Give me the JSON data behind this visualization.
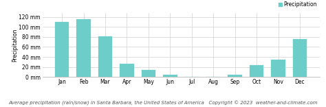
{
  "months": [
    "Jan",
    "Feb",
    "Mar",
    "Apr",
    "May",
    "Jun",
    "Jul",
    "Aug",
    "Sep",
    "Oct",
    "Nov",
    "Dec"
  ],
  "values": [
    110,
    115,
    81,
    26,
    14,
    5,
    1,
    1,
    4,
    24,
    35,
    76
  ],
  "bar_color": "#6dcdc8",
  "bar_edge_color": "#6dcdc8",
  "ylabel": "Precipitation",
  "ylim": [
    0,
    128
  ],
  "yticks": [
    0,
    20,
    40,
    60,
    80,
    100,
    120
  ],
  "ytick_labels": [
    "0 mm",
    "20 mm",
    "40 mm",
    "60 mm",
    "80 mm",
    "100 mm",
    "120 mm"
  ],
  "legend_label": "Precipitation",
  "legend_color": "#6dcdc8",
  "caption": "Average precipitation (rain/snow) in Santa Barbara, the United States of America   Copyright © 2023  weather-and-climate.com",
  "background_color": "#ffffff",
  "grid_color": "#d0d0d0",
  "axis_fontsize": 5.5,
  "tick_fontsize": 5.5,
  "caption_fontsize": 5.0
}
